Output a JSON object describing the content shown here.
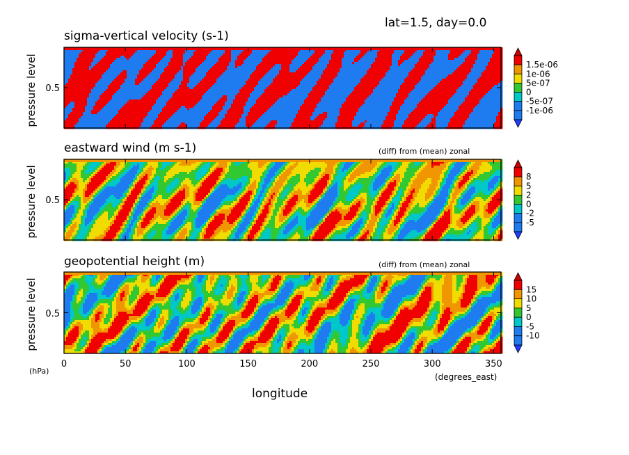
{
  "header": {
    "text": "lat=1.5, day=0.0"
  },
  "axes": {
    "ylabel": "pressure level",
    "yunit": "(hPa)",
    "xlabel": "longitude",
    "xunit": "(degrees_east)",
    "xticks": [
      "0",
      "50",
      "100",
      "150",
      "200",
      "250",
      "300",
      "350"
    ],
    "xtick_values": [
      0,
      50,
      100,
      150,
      200,
      250,
      300,
      350
    ],
    "xlim": [
      0,
      356
    ],
    "ytick": "0.5"
  },
  "palette": {
    "below_low": "#3070f0",
    "blue": "#1f7cf0",
    "cyan": "#00c8c8",
    "green": "#32c832",
    "yellow": "#f0dc00",
    "orange": "#f09600",
    "red": "#f00000",
    "arrow_low": "#1e3cff",
    "arrow_high": "#c80000"
  },
  "chart_data": [
    {
      "type": "heatmap",
      "title": "sigma-vertical velocity (s-1)",
      "subtitle": "",
      "xlim": [
        0,
        356
      ],
      "colorbar_levels": [
        "1.5e-06",
        "1e-06",
        "5e-07",
        "0",
        "-5e-07",
        "-1e-06"
      ],
      "dominant_colors": [
        "red",
        "blue"
      ],
      "seed": 11
    },
    {
      "type": "heatmap",
      "title": "eastward wind (m s-1)",
      "subtitle": "(diff) from (mean) zonal",
      "xlim": [
        0,
        356
      ],
      "colorbar_levels": [
        "8",
        "5",
        "2",
        "0",
        "-2",
        "-5"
      ],
      "dominant_colors": [
        "blue",
        "cyan",
        "green",
        "yellow",
        "orange",
        "red"
      ],
      "seed": 23
    },
    {
      "type": "heatmap",
      "title": "geopotential height (m)",
      "subtitle": "(diff) from (mean) zonal",
      "xlim": [
        0,
        356
      ],
      "colorbar_levels": [
        "15",
        "10",
        "5",
        "0",
        "-5",
        "-10"
      ],
      "dominant_colors": [
        "blue",
        "cyan",
        "green",
        "yellow",
        "orange",
        "red"
      ],
      "seed": 37
    }
  ]
}
